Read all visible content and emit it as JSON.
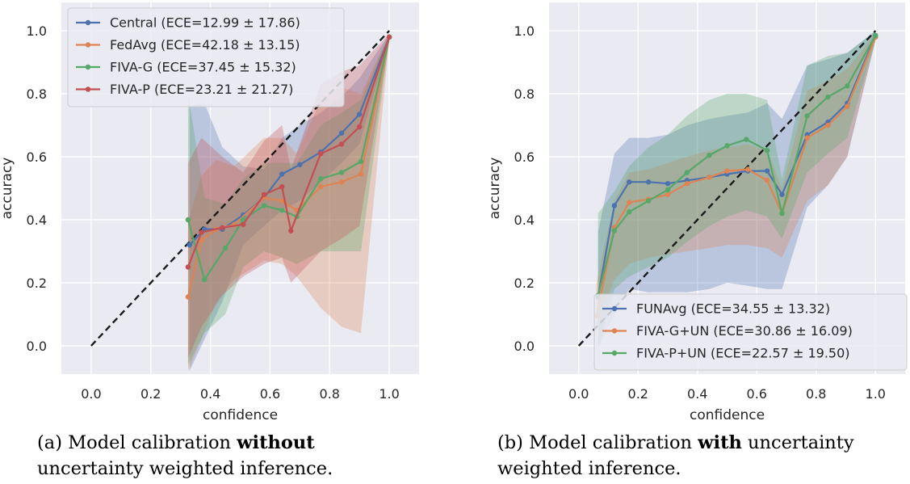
{
  "captions": [
    {
      "pre": "(a) Model calibration ",
      "bold": "without",
      "post": "",
      "line2": "uncertainty weighted inference."
    },
    {
      "pre": "(b) Model calibration ",
      "bold": "with",
      "post": " uncertainty",
      "line2": "weighted inference."
    }
  ],
  "chart_data": [
    {
      "type": "line",
      "xlabel": "confidence",
      "ylabel": "accuracy",
      "xlim": [
        -0.1,
        1.1
      ],
      "ylim": [
        -0.09,
        1.09
      ],
      "xticks": [
        "0.0",
        "0.2",
        "0.4",
        "0.6",
        "0.8",
        "1.0"
      ],
      "yticks": [
        "0.0",
        "0.2",
        "0.4",
        "0.6",
        "0.8",
        "1.0"
      ],
      "grid": true,
      "legend_position": "top-left",
      "reference_line": {
        "x": [
          0,
          1
        ],
        "y": [
          0,
          1
        ],
        "style": "dashed",
        "color": "#1a1a1a"
      },
      "series": [
        {
          "name": "Central (ECE=12.99 ± 17.86)",
          "color": "#4c72b0",
          "x": [
            0.33,
            0.38,
            0.44,
            0.51,
            0.58,
            0.64,
            0.7,
            0.77,
            0.84,
            0.9,
            1.0
          ],
          "y": [
            0.32,
            0.37,
            0.37,
            0.415,
            0.47,
            0.545,
            0.575,
            0.615,
            0.675,
            0.735,
            0.98
          ],
          "lower": [
            -0.08,
            0.02,
            0.14,
            0.32,
            0.38,
            0.43,
            0.46,
            0.52,
            0.58,
            0.64,
            0.97
          ],
          "upper": [
            0.76,
            0.77,
            0.63,
            0.57,
            0.56,
            0.66,
            0.7,
            0.74,
            0.79,
            0.85,
            0.99
          ]
        },
        {
          "name": "FedAvg (ECE=42.18 ± 13.15)",
          "color": "#dd8452",
          "x": [
            0.325,
            0.37,
            0.42,
            0.48,
            0.58,
            0.64,
            0.69,
            0.77,
            0.84,
            0.905,
            1.0
          ],
          "y": [
            0.155,
            0.335,
            0.37,
            0.385,
            0.47,
            0.46,
            0.43,
            0.505,
            0.52,
            0.545,
            0.98
          ],
          "lower": [
            -0.08,
            0.02,
            0.14,
            0.21,
            0.27,
            0.26,
            0.22,
            0.12,
            0.06,
            0.04,
            0.97
          ],
          "upper": [
            0.39,
            0.54,
            0.59,
            0.57,
            0.66,
            0.66,
            0.61,
            0.78,
            0.82,
            0.8,
            0.99
          ]
        },
        {
          "name": "FIVA-G (ECE=37.45 ± 15.32)",
          "color": "#55a868",
          "x": [
            0.325,
            0.38,
            0.45,
            0.51,
            0.58,
            0.64,
            0.69,
            0.77,
            0.84,
            0.905,
            1.0
          ],
          "y": [
            0.4,
            0.21,
            0.31,
            0.4,
            0.445,
            0.43,
            0.41,
            0.53,
            0.55,
            0.585,
            0.98
          ],
          "lower": [
            -0.06,
            0.04,
            0.1,
            0.25,
            0.3,
            0.28,
            0.26,
            0.3,
            0.3,
            0.3,
            0.97
          ],
          "upper": [
            0.8,
            0.47,
            0.45,
            0.53,
            0.58,
            0.58,
            0.58,
            0.7,
            0.74,
            0.78,
            0.99
          ]
        },
        {
          "name": "FIVA-P (ECE=23.21 ± 21.27)",
          "color": "#c44e52",
          "x": [
            0.325,
            0.37,
            0.44,
            0.51,
            0.58,
            0.64,
            0.67,
            0.77,
            0.84,
            0.9,
            1.0
          ],
          "y": [
            0.25,
            0.36,
            0.375,
            0.385,
            0.48,
            0.505,
            0.365,
            0.61,
            0.64,
            0.695,
            0.98
          ],
          "lower": [
            -0.04,
            0.06,
            0.16,
            0.22,
            0.26,
            0.28,
            0.2,
            0.3,
            0.34,
            0.38,
            0.97
          ],
          "upper": [
            0.58,
            0.66,
            0.6,
            0.55,
            0.65,
            0.7,
            0.56,
            0.83,
            0.87,
            0.89,
            0.99
          ]
        }
      ]
    },
    {
      "type": "line",
      "xlabel": "confidence",
      "ylabel": "accuracy",
      "xlim": [
        -0.1,
        1.1
      ],
      "ylim": [
        -0.09,
        1.09
      ],
      "xticks": [
        "0.0",
        "0.2",
        "0.4",
        "0.6",
        "0.8",
        "1.0"
      ],
      "yticks": [
        "0.0",
        "0.2",
        "0.4",
        "0.6",
        "0.8",
        "1.0"
      ],
      "grid": true,
      "legend_position": "bottom-right",
      "reference_line": {
        "x": [
          0,
          1
        ],
        "y": [
          0,
          1
        ],
        "style": "dashed",
        "color": "#1a1a1a"
      },
      "series": [
        {
          "name": "FUNAvg (ECE=34.55 ± 13.32)",
          "color": "#4c72b0",
          "x": [
            0.065,
            0.12,
            0.17,
            0.235,
            0.3,
            0.365,
            0.44,
            0.5,
            0.57,
            0.635,
            0.685,
            0.77,
            0.84,
            0.905,
            1.0
          ],
          "y": [
            0.155,
            0.445,
            0.52,
            0.52,
            0.515,
            0.525,
            0.535,
            0.545,
            0.555,
            0.555,
            0.48,
            0.67,
            0.71,
            0.77,
            0.985
          ],
          "lower": [
            -0.01,
            0.1,
            0.18,
            0.17,
            0.17,
            0.17,
            0.18,
            0.2,
            0.19,
            0.18,
            0.18,
            0.44,
            0.51,
            0.6,
            0.97
          ],
          "upper": [
            0.36,
            0.61,
            0.66,
            0.66,
            0.67,
            0.7,
            0.72,
            0.73,
            0.74,
            0.77,
            0.72,
            0.89,
            0.91,
            0.93,
            1.0
          ]
        },
        {
          "name": "FIVA-G+UN (ECE=30.86 ± 16.09)",
          "color": "#dd8452",
          "x": [
            0.06,
            0.12,
            0.17,
            0.235,
            0.3,
            0.365,
            0.44,
            0.5,
            0.57,
            0.635,
            0.685,
            0.77,
            0.84,
            0.905,
            1.0
          ],
          "y": [
            0.095,
            0.375,
            0.455,
            0.465,
            0.48,
            0.515,
            0.535,
            0.555,
            0.56,
            0.525,
            0.42,
            0.66,
            0.7,
            0.76,
            0.98
          ],
          "lower": [
            0.06,
            0.21,
            0.26,
            0.28,
            0.29,
            0.3,
            0.31,
            0.32,
            0.32,
            0.31,
            0.28,
            0.46,
            0.51,
            0.6,
            0.97
          ],
          "upper": [
            0.2,
            0.46,
            0.55,
            0.56,
            0.58,
            0.6,
            0.62,
            0.63,
            0.64,
            0.62,
            0.5,
            0.81,
            0.84,
            0.88,
            0.99
          ]
        },
        {
          "name": "FIVA-P+UN (ECE=22.57 ± 19.50)",
          "color": "#55a868",
          "x": [
            0.065,
            0.12,
            0.17,
            0.235,
            0.3,
            0.365,
            0.44,
            0.5,
            0.565,
            0.635,
            0.685,
            0.77,
            0.84,
            0.905,
            1.0
          ],
          "y": [
            0.16,
            0.365,
            0.425,
            0.46,
            0.495,
            0.55,
            0.605,
            0.635,
            0.655,
            0.62,
            0.42,
            0.73,
            0.79,
            0.825,
            0.985
          ],
          "lower": [
            -0.01,
            0.18,
            0.22,
            0.25,
            0.28,
            0.33,
            0.38,
            0.41,
            0.43,
            0.41,
            0.34,
            0.55,
            0.61,
            0.66,
            0.97
          ],
          "upper": [
            0.42,
            0.49,
            0.57,
            0.63,
            0.67,
            0.73,
            0.78,
            0.8,
            0.8,
            0.78,
            0.53,
            0.89,
            0.92,
            0.93,
            1.0
          ]
        }
      ]
    }
  ]
}
